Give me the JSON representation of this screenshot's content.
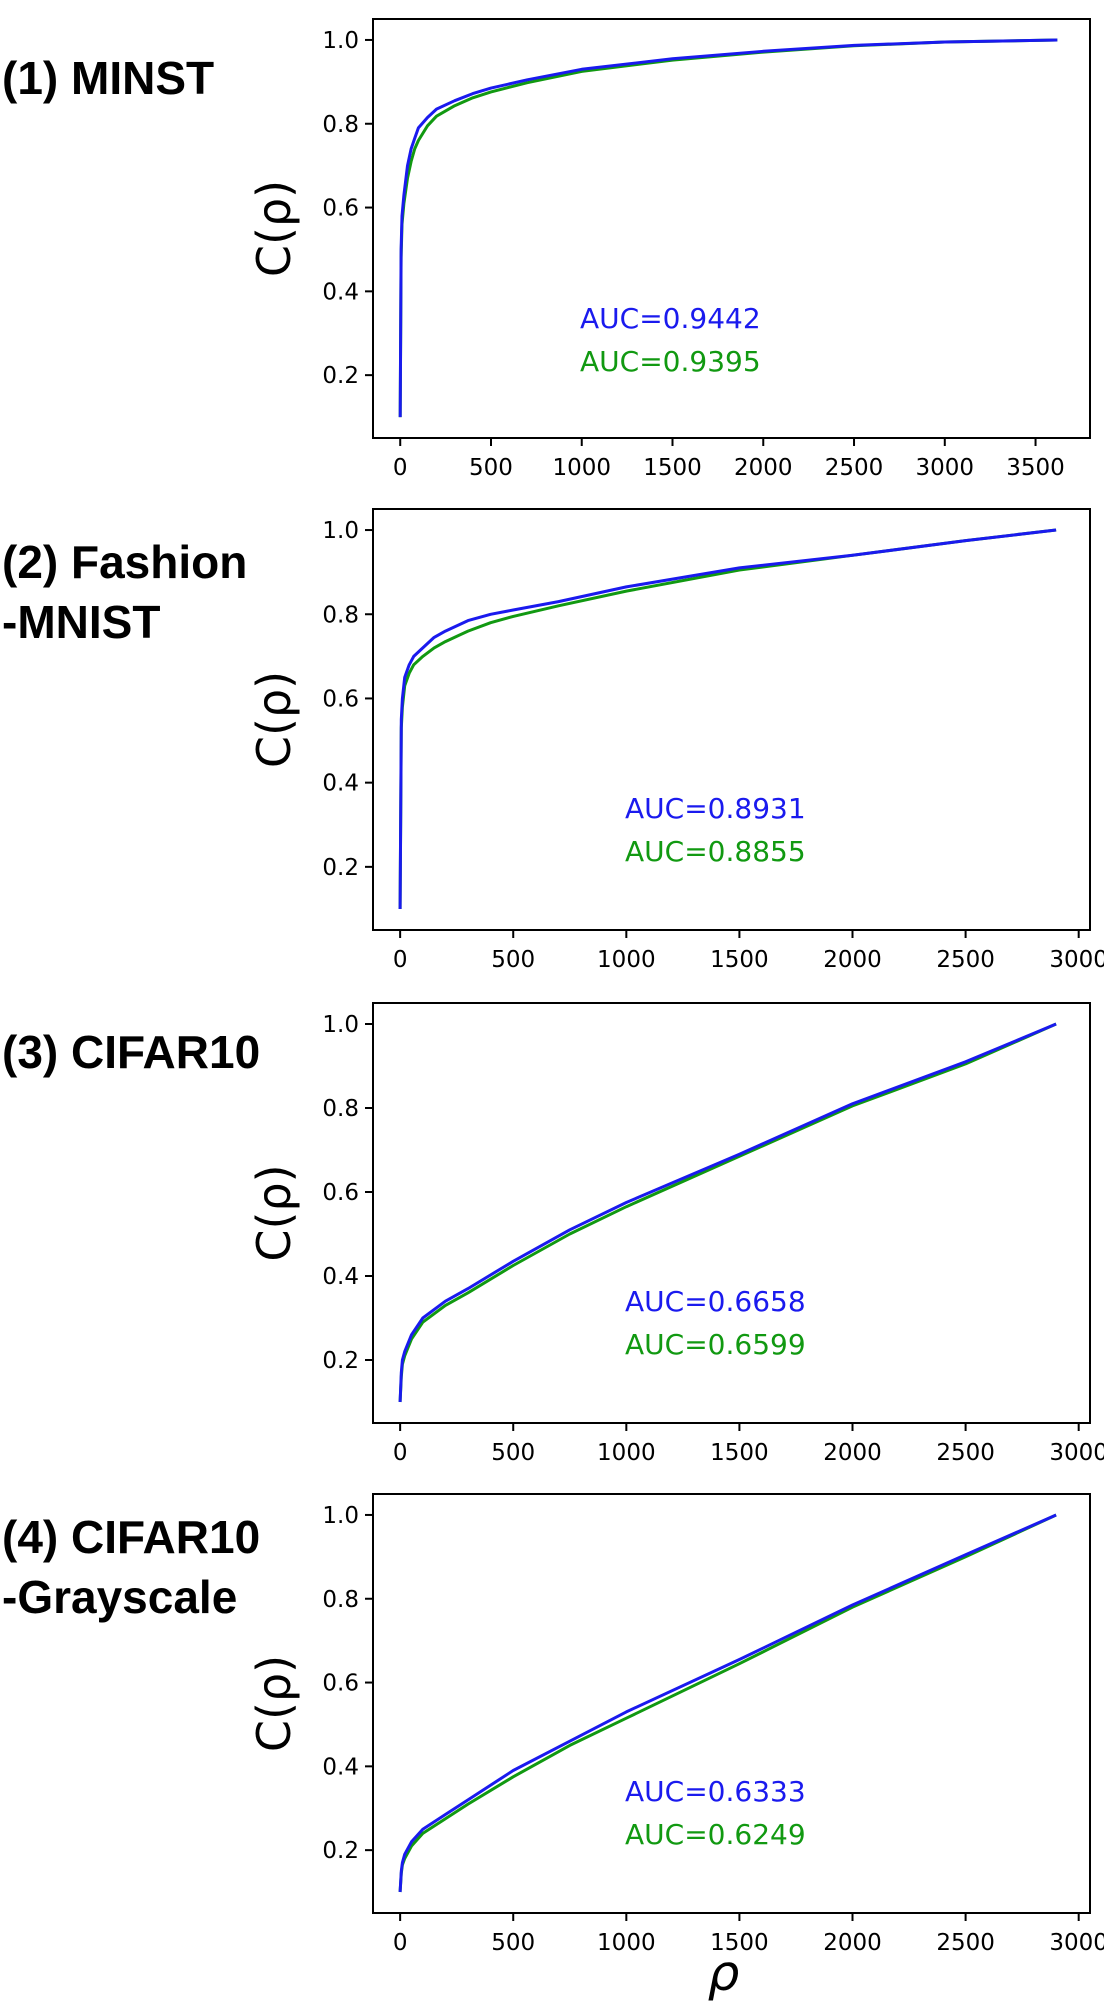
{
  "colors": {
    "series_a": "#1a1aee",
    "series_b": "#119911",
    "axis": "#000000"
  },
  "panels": [
    {
      "label": "(1) MINST",
      "auc_a": "AUC=0.9442",
      "auc_b": "AUC=0.9395"
    },
    {
      "label": "(2) Fashion\n-MNIST",
      "auc_a": "AUC=0.8931",
      "auc_b": "AUC=0.8855"
    },
    {
      "label": "(3) CIFAR10",
      "auc_a": "AUC=0.6658",
      "auc_b": "AUC=0.6599"
    },
    {
      "label": "(4) CIFAR10\n-Grayscale",
      "auc_a": "AUC=0.6333",
      "auc_b": "AUC=0.6249"
    }
  ],
  "chart_data": [
    {
      "type": "line",
      "ylabel": "C(ρ)",
      "xlabel": "",
      "xlim": [
        -150,
        3800
      ],
      "ylim": [
        0.05,
        1.05
      ],
      "xticks": [
        0,
        500,
        1000,
        1500,
        2000,
        2500,
        3000,
        3500
      ],
      "yticks": [
        0.2,
        0.4,
        0.6,
        0.8,
        1.0
      ],
      "annotations": [
        "AUC=0.9442",
        "AUC=0.9395"
      ],
      "series": [
        {
          "x": [
            0,
            5,
            10,
            20,
            40,
            60,
            80,
            100,
            150,
            200,
            300,
            400,
            500,
            700,
            1000,
            1500,
            2000,
            2500,
            3000,
            3620
          ],
          "y": [
            0.1,
            0.5,
            0.58,
            0.63,
            0.7,
            0.74,
            0.765,
            0.79,
            0.815,
            0.835,
            0.855,
            0.872,
            0.885,
            0.905,
            0.93,
            0.955,
            0.973,
            0.987,
            0.995,
            1.0
          ]
        },
        {
          "x": [
            0,
            5,
            10,
            20,
            40,
            60,
            80,
            100,
            150,
            200,
            300,
            400,
            500,
            700,
            1000,
            1500,
            2000,
            2500,
            3000,
            3620
          ],
          "y": [
            0.1,
            0.48,
            0.56,
            0.61,
            0.67,
            0.71,
            0.74,
            0.76,
            0.795,
            0.818,
            0.843,
            0.862,
            0.876,
            0.898,
            0.925,
            0.952,
            0.971,
            0.986,
            0.995,
            1.0
          ]
        }
      ]
    },
    {
      "type": "line",
      "ylabel": "C(ρ)",
      "xlabel": "",
      "xlim": [
        -120,
        3050
      ],
      "ylim": [
        0.05,
        1.05
      ],
      "xticks": [
        0,
        500,
        1000,
        1500,
        2000,
        2500,
        3000
      ],
      "yticks": [
        0.2,
        0.4,
        0.6,
        0.8,
        1.0
      ],
      "annotations": [
        "AUC=0.8931",
        "AUC=0.8855"
      ],
      "series": [
        {
          "x": [
            0,
            5,
            10,
            20,
            40,
            60,
            100,
            150,
            200,
            300,
            400,
            500,
            700,
            1000,
            1500,
            2000,
            2500,
            2900
          ],
          "y": [
            0.1,
            0.55,
            0.6,
            0.65,
            0.68,
            0.7,
            0.72,
            0.745,
            0.76,
            0.785,
            0.8,
            0.81,
            0.83,
            0.865,
            0.91,
            0.94,
            0.975,
            1.0
          ]
        },
        {
          "x": [
            0,
            5,
            10,
            20,
            40,
            60,
            100,
            150,
            200,
            300,
            400,
            500,
            700,
            1000,
            1500,
            2000,
            2500,
            2900
          ],
          "y": [
            0.1,
            0.53,
            0.58,
            0.63,
            0.66,
            0.68,
            0.7,
            0.72,
            0.735,
            0.76,
            0.78,
            0.795,
            0.82,
            0.855,
            0.905,
            0.94,
            0.975,
            1.0
          ]
        }
      ]
    },
    {
      "type": "line",
      "ylabel": "C(ρ)",
      "xlabel": "",
      "xlim": [
        -120,
        3050
      ],
      "ylim": [
        0.05,
        1.05
      ],
      "xticks": [
        0,
        500,
        1000,
        1500,
        2000,
        2500,
        3000
      ],
      "yticks": [
        0.2,
        0.4,
        0.6,
        0.8,
        1.0
      ],
      "annotations": [
        "AUC=0.6658",
        "AUC=0.6599"
      ],
      "series": [
        {
          "x": [
            0,
            5,
            10,
            20,
            50,
            100,
            200,
            300,
            500,
            750,
            1000,
            1500,
            2000,
            2500,
            2900
          ],
          "y": [
            0.1,
            0.17,
            0.2,
            0.22,
            0.26,
            0.3,
            0.34,
            0.37,
            0.435,
            0.51,
            0.575,
            0.69,
            0.81,
            0.91,
            1.0
          ]
        },
        {
          "x": [
            0,
            5,
            10,
            20,
            50,
            100,
            200,
            300,
            500,
            750,
            1000,
            1500,
            2000,
            2500,
            2900
          ],
          "y": [
            0.1,
            0.16,
            0.19,
            0.21,
            0.25,
            0.29,
            0.33,
            0.36,
            0.425,
            0.5,
            0.565,
            0.685,
            0.805,
            0.905,
            1.0
          ]
        }
      ]
    },
    {
      "type": "line",
      "ylabel": "C(ρ)",
      "xlabel": "ρ",
      "xlim": [
        -120,
        3050
      ],
      "ylim": [
        0.05,
        1.05
      ],
      "xticks": [
        0,
        500,
        1000,
        1500,
        2000,
        2500,
        3000
      ],
      "yticks": [
        0.2,
        0.4,
        0.6,
        0.8,
        1.0
      ],
      "annotations": [
        "AUC=0.6333",
        "AUC=0.6249"
      ],
      "series": [
        {
          "x": [
            0,
            5,
            10,
            20,
            50,
            100,
            200,
            300,
            500,
            750,
            1000,
            1500,
            2000,
            2500,
            2900
          ],
          "y": [
            0.1,
            0.15,
            0.17,
            0.19,
            0.22,
            0.25,
            0.285,
            0.32,
            0.39,
            0.46,
            0.53,
            0.655,
            0.785,
            0.905,
            1.0
          ]
        },
        {
          "x": [
            0,
            5,
            10,
            20,
            50,
            100,
            200,
            300,
            500,
            750,
            1000,
            1500,
            2000,
            2500,
            2900
          ],
          "y": [
            0.1,
            0.145,
            0.165,
            0.18,
            0.21,
            0.24,
            0.275,
            0.31,
            0.375,
            0.45,
            0.515,
            0.645,
            0.78,
            0.9,
            1.0
          ]
        }
      ]
    }
  ]
}
